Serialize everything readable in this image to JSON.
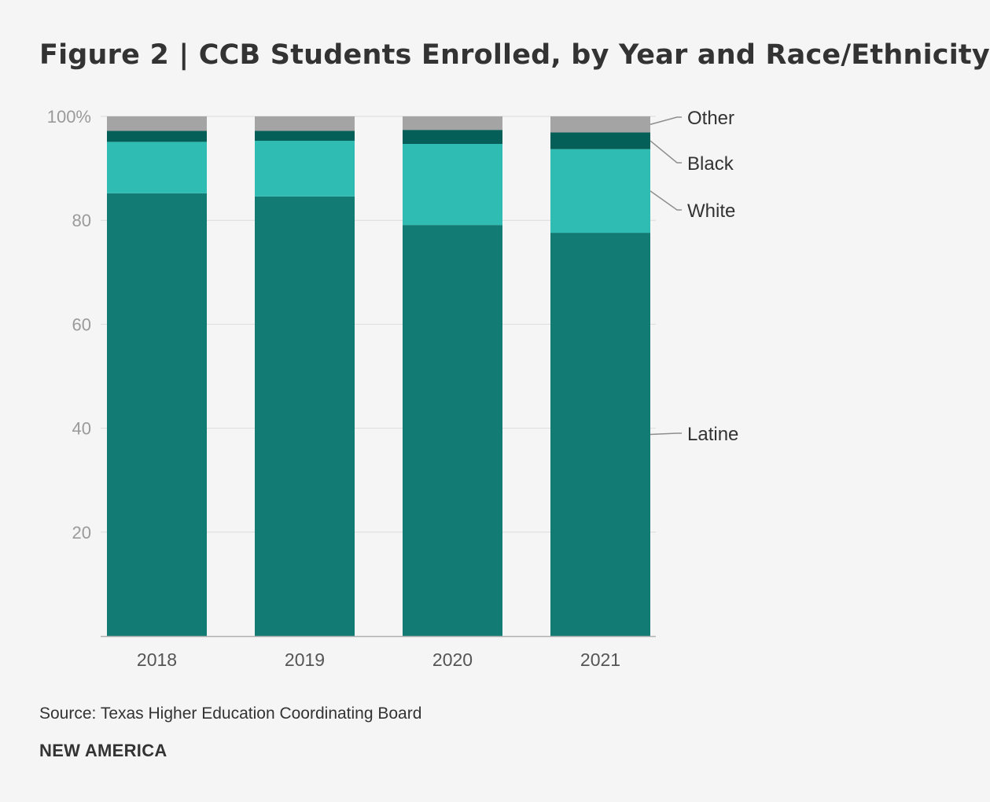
{
  "chart_data": {
    "type": "bar",
    "stacked": true,
    "title": "Figure 2 | CCB Students Enrolled, by Year and Race/Ethnicity",
    "categories": [
      "2018",
      "2019",
      "2020",
      "2021"
    ],
    "series": [
      {
        "name": "Latine",
        "color": "#127c74",
        "values": [
          85.2,
          84.6,
          79.1,
          77.6
        ]
      },
      {
        "name": "White",
        "color": "#2ebcb3",
        "values": [
          9.9,
          10.7,
          15.6,
          16.1
        ]
      },
      {
        "name": "Black",
        "color": "#035f58",
        "values": [
          2.1,
          1.9,
          2.7,
          3.2
        ]
      },
      {
        "name": "Other",
        "color": "#a4a4a4",
        "values": [
          2.8,
          2.8,
          2.6,
          3.1
        ]
      }
    ],
    "ylim": [
      0,
      100
    ],
    "yticks": [
      20,
      40,
      60,
      80,
      100
    ],
    "ytick_labels": [
      "20",
      "40",
      "60",
      "80",
      "100%"
    ],
    "xlabel": "",
    "ylabel": "",
    "grid": true,
    "legend": "right, labels beside last bar"
  },
  "footer": {
    "source": "Source: Texas Higher Education Coordinating Board",
    "brand": "NEW AMERICA"
  }
}
